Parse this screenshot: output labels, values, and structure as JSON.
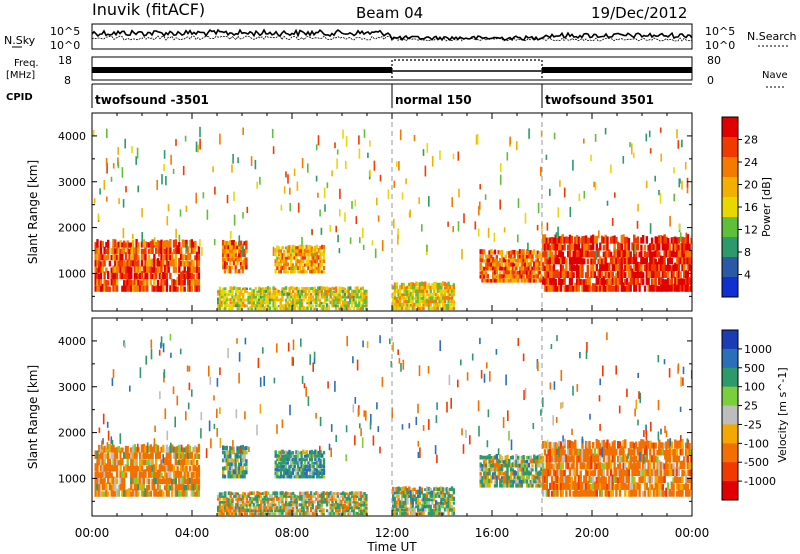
{
  "header": {
    "station": "Inuvik (fitACF)",
    "beam": "Beam 04",
    "date": "19/Dec/2012"
  },
  "panel_labels": {
    "nsky": "N.Sky",
    "nsearch": "N.Search",
    "freq_line1": "Freq.",
    "freq_line2": "[MHz]",
    "nave": "Nave",
    "cpid": "CPID",
    "nsky_ticks": [
      "10^5",
      "10^0"
    ],
    "nsearch_ticks": [
      "10^5",
      "10^0"
    ],
    "freq_ticks": [
      "18",
      "8"
    ],
    "nave_ticks": [
      "80",
      "0"
    ]
  },
  "cpid_segments": [
    {
      "label": "twofsound -3501",
      "start_h": 0,
      "end_h": 12
    },
    {
      "label": "normal 150",
      "start_h": 12,
      "end_h": 18
    },
    {
      "label": "twofsound 3501",
      "start_h": 18,
      "end_h": 24
    }
  ],
  "chart_data": [
    {
      "type": "heatmap",
      "parameter": "Power",
      "ylabel": "Slant Range [km]",
      "colorbar_label": "Power [dB]",
      "colorbar_ticks": [
        "28",
        "24",
        "20",
        "16",
        "12",
        "8",
        "4"
      ],
      "colorbar_colors": [
        "#e00000",
        "#f03a00",
        "#f47a00",
        "#f2b000",
        "#e8d800",
        "#5fbf3a",
        "#2c9a6a",
        "#2a5aa6",
        "#1030d0"
      ],
      "ylim": [
        180,
        4500
      ],
      "yticks": [
        "4000",
        "3000",
        "2000",
        "1000"
      ],
      "xlim": [
        "00:00",
        "24:00"
      ],
      "echo_blocks": [
        {
          "start_h": 0.1,
          "end_h": 4.3,
          "range_lo": 600,
          "range_hi": 1700,
          "value": 24
        },
        {
          "start_h": 5.2,
          "end_h": 6.2,
          "range_lo": 1000,
          "range_hi": 1700,
          "value": 22
        },
        {
          "start_h": 7.3,
          "end_h": 9.3,
          "range_lo": 1000,
          "range_hi": 1600,
          "value": 18
        },
        {
          "start_h": 5.0,
          "end_h": 11.0,
          "range_lo": 200,
          "range_hi": 700,
          "value": 14
        },
        {
          "start_h": 12.0,
          "end_h": 14.5,
          "range_lo": 200,
          "range_hi": 800,
          "value": 16
        },
        {
          "start_h": 15.5,
          "end_h": 18.0,
          "range_lo": 800,
          "range_hi": 1500,
          "value": 22
        },
        {
          "start_h": 18.0,
          "end_h": 24.0,
          "range_lo": 600,
          "range_hi": 1800,
          "value": 26
        }
      ]
    },
    {
      "type": "heatmap",
      "parameter": "Velocity",
      "ylabel": "Slant Range [km]",
      "xlabel": "Time UT",
      "colorbar_label": "Velocity [m s^-1]",
      "colorbar_ticks": [
        "1000",
        "500",
        "100",
        "25",
        "-25",
        "-100",
        "-500",
        "-1000"
      ],
      "colorbar_colors": [
        "#1a3cb4",
        "#2b6fb8",
        "#2e9a6a",
        "#7ccf3c",
        "#bdbdbd",
        "#f2a800",
        "#f27000",
        "#f03a00",
        "#e00000"
      ],
      "ylim": [
        180,
        4500
      ],
      "yticks": [
        "4000",
        "3000",
        "2000",
        "1000"
      ],
      "xticks": [
        "00:00",
        "04:00",
        "08:00",
        "12:00",
        "16:00",
        "20:00",
        "00:00"
      ],
      "xlim": [
        "00:00",
        "24:00"
      ],
      "echo_blocks": [
        {
          "start_h": 0.1,
          "end_h": 4.3,
          "range_lo": 600,
          "range_hi": 1700,
          "value": -150
        },
        {
          "start_h": 5.2,
          "end_h": 6.2,
          "range_lo": 1000,
          "range_hi": 1700,
          "value": 150
        },
        {
          "start_h": 7.3,
          "end_h": 9.3,
          "range_lo": 1000,
          "range_hi": 1600,
          "value": 200
        },
        {
          "start_h": 5.0,
          "end_h": 11.0,
          "range_lo": 200,
          "range_hi": 700,
          "value": 0
        },
        {
          "start_h": 12.0,
          "end_h": 14.5,
          "range_lo": 200,
          "range_hi": 800,
          "value": 100
        },
        {
          "start_h": 15.5,
          "end_h": 18.0,
          "range_lo": 800,
          "range_hi": 1500,
          "value": 80
        },
        {
          "start_h": 18.0,
          "end_h": 24.0,
          "range_lo": 600,
          "range_hi": 1800,
          "value": -200
        }
      ]
    }
  ]
}
